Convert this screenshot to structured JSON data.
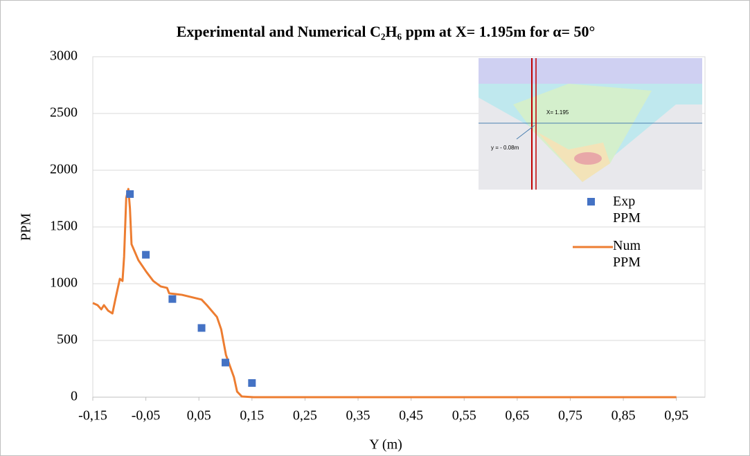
{
  "chart_data": {
    "type": "combo",
    "title": "Experimental and Numerical C₂H₆ ppm at X= 1.195m for α= 50°",
    "x_label": "Y (m)",
    "y_label": "PPM",
    "xlim": [
      -0.15,
      1.0
    ],
    "ylim": [
      0,
      3000
    ],
    "xticks": [
      {
        "value": -0.15,
        "label": "-0,15"
      },
      {
        "value": -0.05,
        "label": "-0,05"
      },
      {
        "value": 0.05,
        "label": "0,05"
      },
      {
        "value": 0.15,
        "label": "0,15"
      },
      {
        "value": 0.25,
        "label": "0,25"
      },
      {
        "value": 0.35,
        "label": "0,35"
      },
      {
        "value": 0.45,
        "label": "0,45"
      },
      {
        "value": 0.55,
        "label": "0,55"
      },
      {
        "value": 0.65,
        "label": "0,65"
      },
      {
        "value": 0.75,
        "label": "0,75"
      },
      {
        "value": 0.85,
        "label": "0,85"
      },
      {
        "value": 0.95,
        "label": "0,95"
      }
    ],
    "yticks": [
      0,
      500,
      1000,
      1500,
      2000,
      2500,
      3000
    ],
    "grid": true,
    "legend": "right",
    "series": [
      {
        "name": "Exp PPM",
        "type": "scatter",
        "color": "#4472c4",
        "x": [
          -0.08,
          -0.05,
          0,
          0.055,
          0.1,
          0.15
        ],
        "values": [
          1790,
          1255,
          865,
          610,
          305,
          125
        ]
      },
      {
        "name": "Num PPM",
        "type": "line",
        "color": "#ed7d31",
        "x": [
          -0.15,
          -0.141,
          -0.134,
          -0.129,
          -0.121,
          -0.113,
          -0.107,
          -0.099,
          -0.094,
          -0.091,
          -0.087,
          -0.083,
          -0.08,
          -0.077,
          -0.064,
          -0.049,
          -0.036,
          -0.022,
          -0.01,
          -0.006,
          0.018,
          0.055,
          0.065,
          0.084,
          0.092,
          0.101,
          0.116,
          0.122,
          0.131,
          0.153,
          0.95
        ],
        "values": [
          830,
          811,
          774,
          811,
          762,
          738,
          872,
          1043,
          1024,
          1238,
          1756,
          1835,
          1665,
          1348,
          1207,
          1104,
          1024,
          976,
          963,
          915,
          902,
          860,
          811,
          707,
          598,
          372,
          177,
          49,
          6,
          0,
          0
        ]
      }
    ],
    "inset": {
      "labels": [
        "X= 1.195",
        "y = - 0.08m"
      ]
    }
  }
}
